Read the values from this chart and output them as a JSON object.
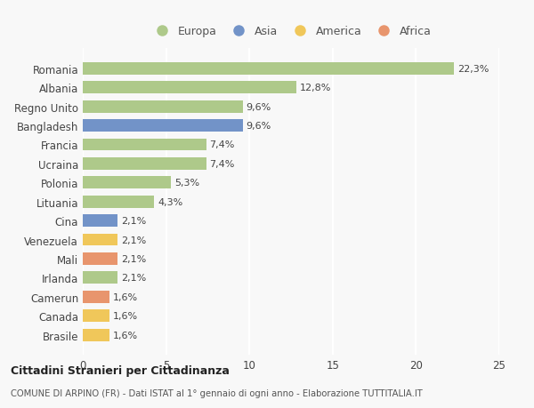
{
  "categories": [
    "Romania",
    "Albania",
    "Regno Unito",
    "Bangladesh",
    "Francia",
    "Ucraina",
    "Polonia",
    "Lituania",
    "Cina",
    "Venezuela",
    "Mali",
    "Irlanda",
    "Camerun",
    "Canada",
    "Brasile"
  ],
  "values": [
    22.3,
    12.8,
    9.6,
    9.6,
    7.4,
    7.4,
    5.3,
    4.3,
    2.1,
    2.1,
    2.1,
    2.1,
    1.6,
    1.6,
    1.6
  ],
  "labels": [
    "22,3%",
    "12,8%",
    "9,6%",
    "9,6%",
    "7,4%",
    "7,4%",
    "5,3%",
    "4,3%",
    "2,1%",
    "2,1%",
    "2,1%",
    "2,1%",
    "1,6%",
    "1,6%",
    "1,6%"
  ],
  "continents": [
    "Europa",
    "Europa",
    "Europa",
    "Asia",
    "Europa",
    "Europa",
    "Europa",
    "Europa",
    "Asia",
    "America",
    "Africa",
    "Europa",
    "Africa",
    "America",
    "America"
  ],
  "continent_colors": {
    "Europa": "#aec98a",
    "Asia": "#7293c8",
    "America": "#f0c75a",
    "Africa": "#e8956d"
  },
  "legend_order": [
    "Europa",
    "Asia",
    "America",
    "Africa"
  ],
  "xlim": [
    0,
    25
  ],
  "xticks": [
    0,
    5,
    10,
    15,
    20,
    25
  ],
  "title": "Cittadini Stranieri per Cittadinanza",
  "subtitle": "COMUNE DI ARPINO (FR) - Dati ISTAT al 1° gennaio di ogni anno - Elaborazione TUTTITALIA.IT",
  "bg_color": "#f8f8f8",
  "grid_color": "#ffffff",
  "bar_height": 0.65,
  "label_fontsize": 8.0,
  "ytick_fontsize": 8.5,
  "xtick_fontsize": 8.5
}
